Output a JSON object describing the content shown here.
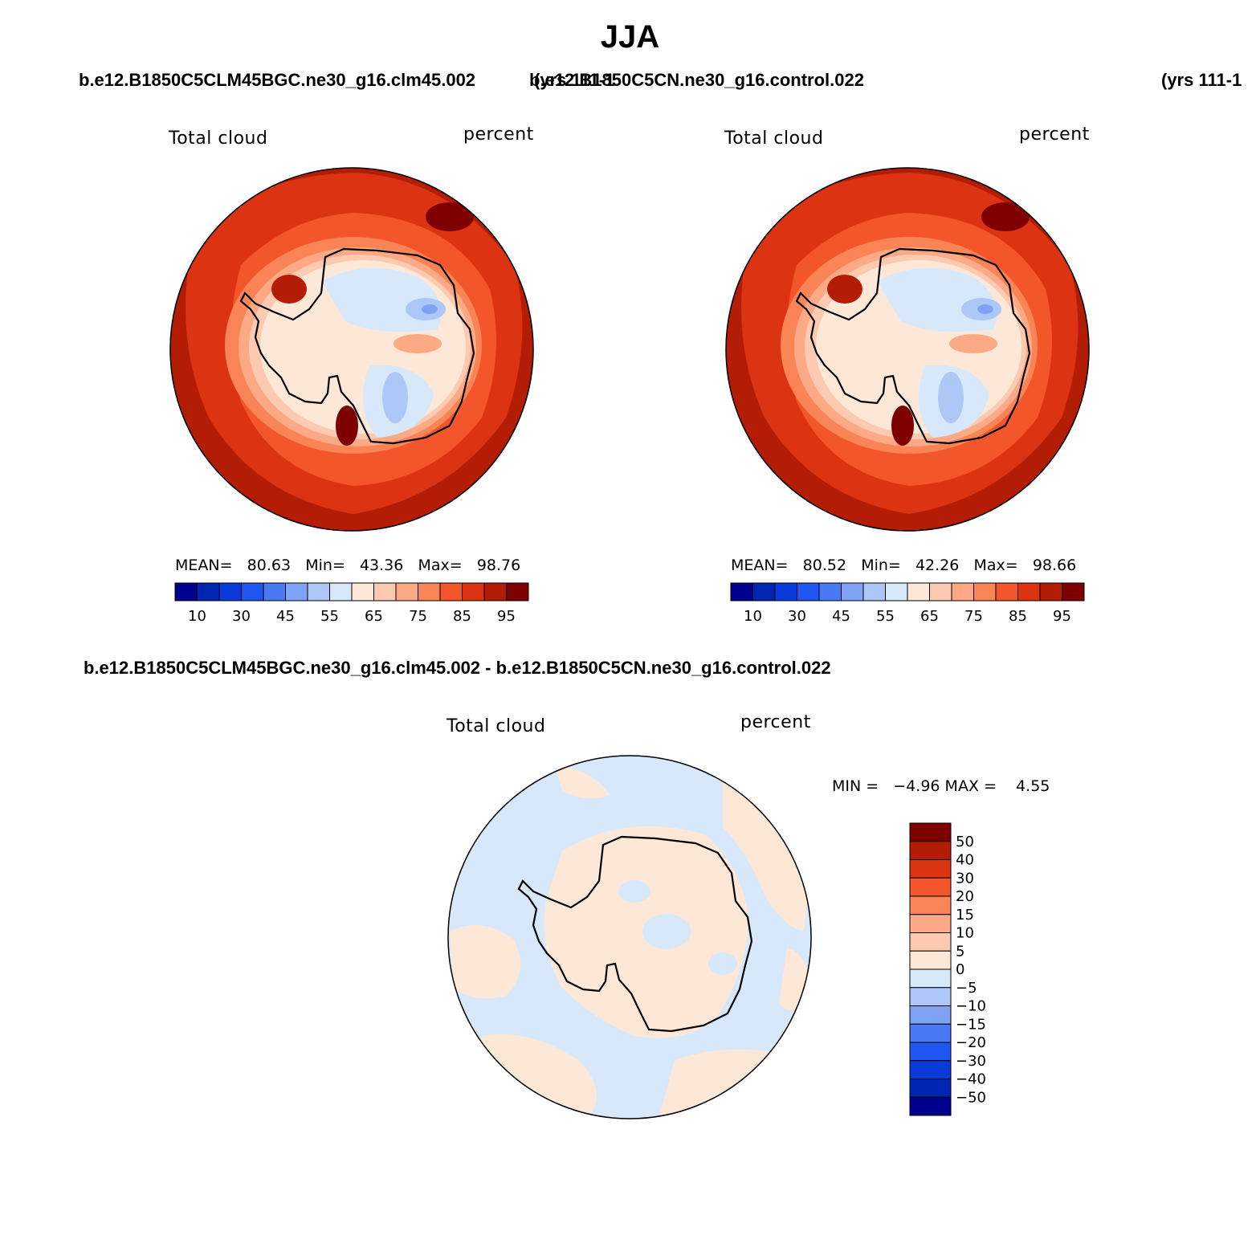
{
  "page_title": "JJA",
  "panels": [
    {
      "case_name": "b.e12.B1850C5CLM45BGC.ne30_g16.clm45.002",
      "years": "(yrs 111-1",
      "variable_label": "Total cloud",
      "units_label": "percent",
      "stats": {
        "mean_label": "MEAN=",
        "mean": "80.63",
        "min_label": "Min=",
        "min": "43.36",
        "max_label": "Max=",
        "max": "98.76"
      }
    },
    {
      "case_name": "b.e12.B1850C5CN.ne30_g16.control.022",
      "years": "(yrs 111-1",
      "variable_label": "Total cloud",
      "units_label": "percent",
      "stats": {
        "mean_label": "MEAN=",
        "mean": "80.52",
        "min_label": "Min=",
        "min": "42.26",
        "max_label": "Max=",
        "max": "98.66"
      }
    }
  ],
  "colorbar": {
    "tick_labels": [
      "10",
      "30",
      "45",
      "55",
      "65",
      "75",
      "85",
      "95"
    ],
    "colors": [
      "#00008f",
      "#0025b3",
      "#0a3ad9",
      "#1f55f0",
      "#4a79f5",
      "#7ea3f5",
      "#adc8f7",
      "#d7e8fb",
      "#fde8d8",
      "#fccab0",
      "#fbaa85",
      "#f98455",
      "#f3562b",
      "#dc3412",
      "#b31d06",
      "#7f0000"
    ]
  },
  "difference": {
    "title": "b.e12.B1850C5CLM45BGC.ne30_g16.clm45.002 - b.e12.B1850C5CN.ne30_g16.control.022",
    "variable_label": "Total cloud",
    "units_label": "percent",
    "min_max_text": "MIN =   −4.96 MAX =    4.55",
    "legend_labels": [
      "50",
      "40",
      "30",
      "20",
      "15",
      "10",
      "5",
      "0",
      "−5",
      "−10",
      "−15",
      "−20",
      "−30",
      "−40",
      "−50"
    ],
    "legend_colors": [
      "#7f0000",
      "#b31d06",
      "#dc3412",
      "#f3562b",
      "#f98455",
      "#fbaa85",
      "#fccab0",
      "#fde8d8",
      "#d7e8fb",
      "#adc8f7",
      "#7ea3f5",
      "#4a79f5",
      "#1f55f0",
      "#0a3ad9",
      "#0025b3",
      "#00008f"
    ]
  }
}
